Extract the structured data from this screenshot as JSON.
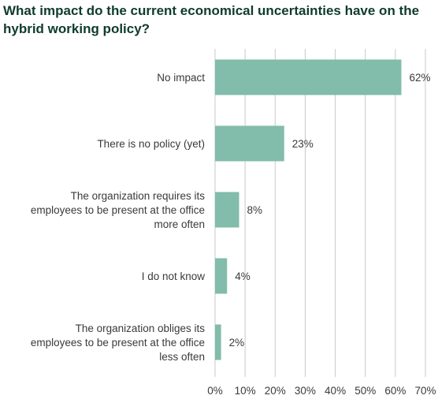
{
  "chart_data": {
    "type": "bar",
    "orientation": "horizontal",
    "title": "What impact do the current economical uncertainties have on the hybrid working policy?",
    "categories": [
      [
        "No impact"
      ],
      [
        "There is no policy (yet)"
      ],
      [
        "The organization requires its",
        "employees to be present at the office",
        "more often"
      ],
      [
        "I do not know"
      ],
      [
        "The organization obliges its",
        "employees to be present at the office",
        "less often"
      ]
    ],
    "values": [
      62,
      23,
      8,
      4,
      2
    ],
    "value_labels": [
      "62%",
      "23%",
      "8%",
      "4%",
      "2%"
    ],
    "xlim": [
      0,
      70
    ],
    "x_ticks": [
      0,
      10,
      20,
      30,
      40,
      50,
      60,
      70
    ],
    "x_tick_labels": [
      "0%",
      "10%",
      "20%",
      "30%",
      "40%",
      "50%",
      "60%",
      "70%"
    ],
    "grid": "vertical",
    "legend": "none",
    "bar_color": "#82bcab",
    "title_color": "#0f3b2e"
  }
}
